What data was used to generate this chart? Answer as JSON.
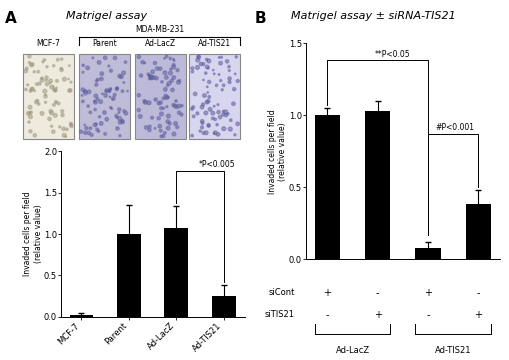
{
  "panel_A": {
    "title": "Matrigel assay",
    "bars": [
      "MCF-7",
      "Parent",
      "Ad-LacZ",
      "Ad-TIS21"
    ],
    "values": [
      0.02,
      1.0,
      1.07,
      0.25
    ],
    "errors": [
      0.02,
      0.35,
      0.27,
      0.13
    ],
    "bar_color": "#000000",
    "ylabel_line1": "Invaded cells per field",
    "ylabel_line2": "(relative value)",
    "ylim": [
      0,
      2.0
    ],
    "yticks": [
      0.0,
      0.5,
      1.0,
      1.5,
      2.0
    ],
    "bracket_label": "*P<0.005",
    "mda_label": "MDA-MB-231",
    "img_colors": [
      "#eeeade",
      "#bfbcd8",
      "#bcbad8",
      "#d8d6ee"
    ],
    "img_labels": [
      "MCF-7",
      "Parent",
      "Ad-LacZ",
      "Ad-TIS21"
    ]
  },
  "panel_B": {
    "title": "Matrigel assay ± siRNA-TIS21",
    "values": [
      1.0,
      1.03,
      0.08,
      0.38
    ],
    "errors": [
      0.05,
      0.07,
      0.04,
      0.1
    ],
    "bar_color": "#000000",
    "ylabel_line1": "Invaded cells per field",
    "ylabel_line2": "(relative value)",
    "ylim": [
      0,
      1.5
    ],
    "yticks": [
      0.0,
      0.5,
      1.0,
      1.5
    ],
    "bracket1_label": "**P<0.05",
    "bracket2_label": "#P<0.001",
    "siCont_labels": [
      "+",
      "-",
      "+",
      "-"
    ],
    "siTIS21_labels": [
      "-",
      "+",
      "-",
      "+"
    ],
    "adlacz_label": "Ad-LacZ",
    "adtis21_label": "Ad-TIS21"
  }
}
